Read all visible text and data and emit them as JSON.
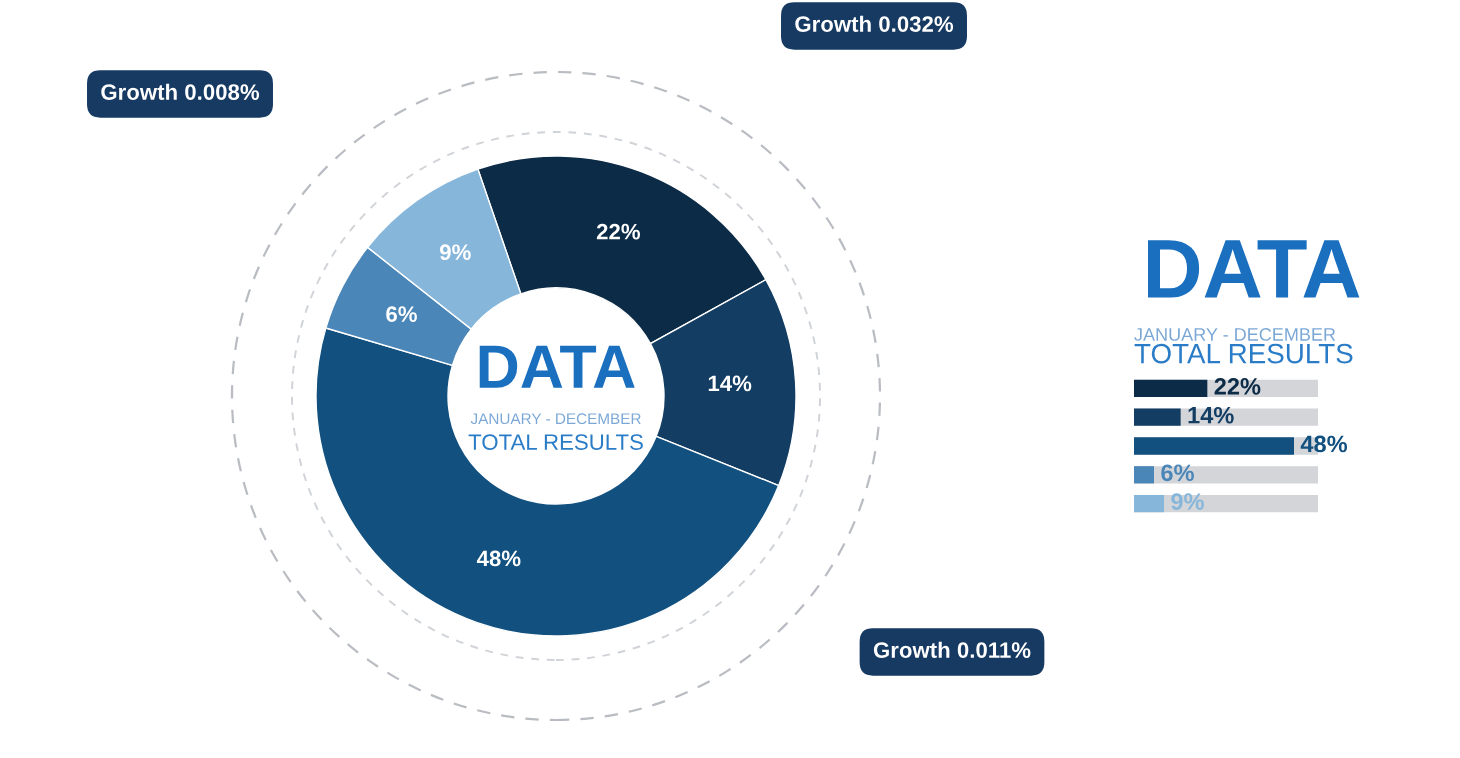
{
  "chart_data": [
    {
      "type": "donut",
      "title": "DATA",
      "subtitle": "JANUARY - DECEMBER",
      "annotations": [
        "TOTAL RESULTS",
        "Growth 0.008%",
        "Growth 0.032%",
        "Growth 0.011%"
      ],
      "categories": [
        null,
        null,
        null,
        null,
        null
      ],
      "values": [
        22,
        14,
        48,
        6,
        9
      ],
      "colors": [
        "#0c2b47",
        "#143d63",
        "#12517f",
        "#4a86b8",
        "#86b6da"
      ],
      "value_labels": [
        "22%",
        "14%",
        "48%",
        "6%",
        "9%"
      ]
    },
    {
      "type": "bar",
      "orientation": "horizontal",
      "title": "DATA",
      "subtitle": "JANUARY - DECEMBER",
      "annotations": [
        "TOTAL RESULTS"
      ],
      "categories": [
        null,
        null,
        null,
        null,
        null
      ],
      "values": [
        22,
        14,
        48,
        6,
        9
      ],
      "colors": [
        "#0c2b47",
        "#143d63",
        "#12517f",
        "#4a86b8",
        "#86b6da"
      ],
      "value_labels": [
        "22%",
        "14%",
        "48%",
        "6%",
        "9%"
      ]
    }
  ]
}
